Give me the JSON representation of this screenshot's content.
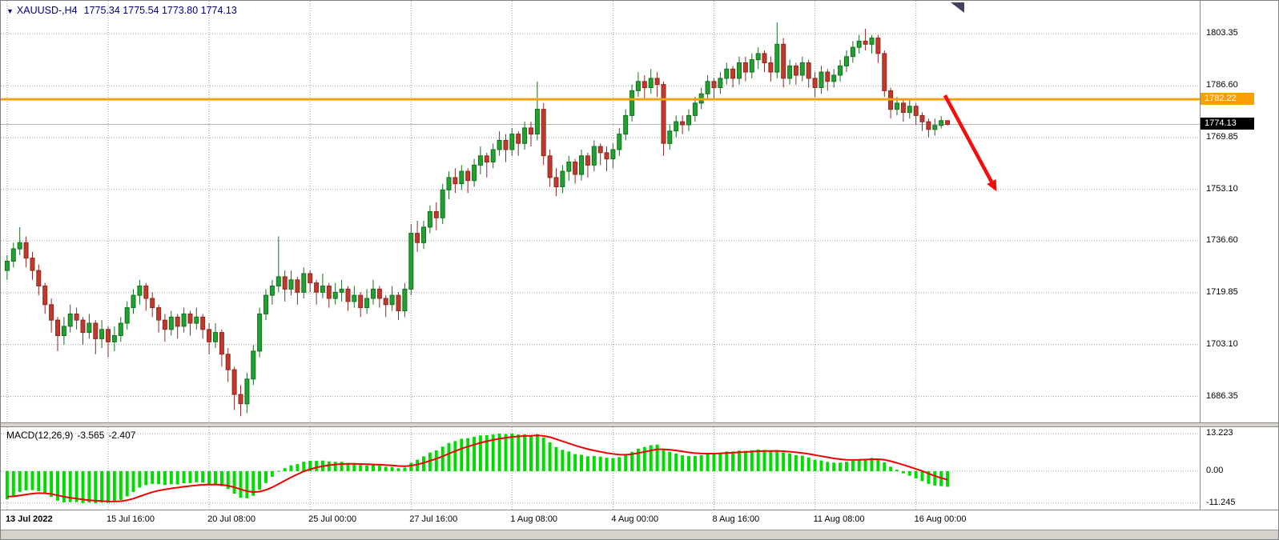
{
  "window": {
    "title_symbol": "XAUUSD-,H4",
    "title_ohlc": "1775.34 1775.54 1773.80 1774.13",
    "symbol_dropdown_icon": "▼"
  },
  "macd_panel": {
    "label": "MACD(12,26,9)",
    "value_main": "-3.565",
    "value_signal": "-2.407",
    "axis_labels": [
      "13.223",
      "0.00",
      "-11.245"
    ]
  },
  "price_axis": {
    "labels": [
      "1803.35",
      "1786.60",
      "1769.85",
      "1753.10",
      "1736.60",
      "1719.85",
      "1703.10",
      "1686.35"
    ],
    "hline_tag": "1782.22",
    "bid_tag": "1774.13"
  },
  "time_axis": [
    {
      "label": "13 Jul 2022",
      "bar": 0,
      "bold": true
    },
    {
      "label": "15 Jul 16:00",
      "bar": 16
    },
    {
      "label": "20 Jul 08:00",
      "bar": 32
    },
    {
      "label": "25 Jul 00:00",
      "bar": 48
    },
    {
      "label": "27 Jul 16:00",
      "bar": 64
    },
    {
      "label": "1 Aug 08:00",
      "bar": 80
    },
    {
      "label": "4 Aug 00:00",
      "bar": 96
    },
    {
      "label": "8 Aug 16:00",
      "bar": 112
    },
    {
      "label": "11 Aug 08:00",
      "bar": 128
    },
    {
      "label": "16 Aug 00:00",
      "bar": 144
    }
  ],
  "chart_data": {
    "type": "candlestick",
    "symbol": "XAUUSD-",
    "timeframe": "H4",
    "current_ohlc": {
      "open": 1775.34,
      "high": 1775.54,
      "low": 1773.8,
      "close": 1774.13
    },
    "price_range": [
      1678,
      1814
    ],
    "hline": 1782.22,
    "bid_price": 1774.13,
    "arrow": {
      "bar_from": 148.6,
      "price_from": 1783.5,
      "bar_to": 156.8,
      "price_to": 1752.5
    },
    "macd": {
      "fast": 12,
      "slow": 26,
      "signal": 9,
      "main_value": -3.565,
      "signal_value": -2.407,
      "scale_max": 13.223,
      "scale_min": -11.245
    },
    "colors": {
      "bull": "#1fa32e",
      "bull_border": "#156f1f",
      "bear": "#c0392b",
      "bear_border": "#8e2a21",
      "grid": "#9b9b9b",
      "hline": "#f7a000",
      "bid_line": "#b3b3b3",
      "macd_hist": "#00dc00",
      "macd_signal": "#f00000",
      "arrow": "#f50d0d",
      "title": "#000080"
    },
    "candles_ohlc": [
      [
        1727,
        1732,
        1724,
        1730
      ],
      [
        1730,
        1736,
        1728,
        1734
      ],
      [
        1734,
        1741,
        1732,
        1736
      ],
      [
        1736,
        1738,
        1728,
        1731
      ],
      [
        1731,
        1733,
        1724,
        1727
      ],
      [
        1727,
        1729,
        1719,
        1722
      ],
      [
        1722,
        1723,
        1713,
        1716
      ],
      [
        1716,
        1718,
        1707,
        1711
      ],
      [
        1711,
        1712,
        1701,
        1706
      ],
      [
        1706,
        1712,
        1703,
        1709
      ],
      [
        1709,
        1716,
        1707,
        1713
      ],
      [
        1713,
        1715,
        1708,
        1711
      ],
      [
        1711,
        1712,
        1703,
        1707
      ],
      [
        1707,
        1713,
        1705,
        1710
      ],
      [
        1710,
        1711,
        1700,
        1705
      ],
      [
        1705,
        1711,
        1702,
        1708
      ],
      [
        1708,
        1709,
        1699,
        1704
      ],
      [
        1704,
        1709,
        1701,
        1706
      ],
      [
        1706,
        1712,
        1704,
        1710
      ],
      [
        1710,
        1717,
        1708,
        1715
      ],
      [
        1715,
        1721,
        1713,
        1719
      ],
      [
        1719,
        1724,
        1716,
        1722
      ],
      [
        1722,
        1723,
        1714,
        1718
      ],
      [
        1718,
        1720,
        1712,
        1715
      ],
      [
        1715,
        1716,
        1707,
        1711
      ],
      [
        1711,
        1713,
        1704,
        1708
      ],
      [
        1708,
        1714,
        1706,
        1712
      ],
      [
        1712,
        1713,
        1705,
        1709
      ],
      [
        1709,
        1715,
        1707,
        1713
      ],
      [
        1713,
        1714,
        1706,
        1710
      ],
      [
        1710,
        1715,
        1708,
        1712
      ],
      [
        1712,
        1713,
        1705,
        1708
      ],
      [
        1708,
        1710,
        1700,
        1704
      ],
      [
        1704,
        1710,
        1702,
        1707
      ],
      [
        1707,
        1708,
        1696,
        1700
      ],
      [
        1700,
        1702,
        1691,
        1695
      ],
      [
        1695,
        1696,
        1682,
        1687
      ],
      [
        1687,
        1690,
        1680,
        1684
      ],
      [
        1684,
        1694,
        1681,
        1692
      ],
      [
        1692,
        1703,
        1690,
        1701
      ],
      [
        1701,
        1715,
        1699,
        1713
      ],
      [
        1713,
        1721,
        1711,
        1719
      ],
      [
        1719,
        1724,
        1716,
        1722
      ],
      [
        1722,
        1738,
        1720,
        1725
      ],
      [
        1725,
        1727,
        1717,
        1721
      ],
      [
        1721,
        1727,
        1719,
        1724
      ],
      [
        1724,
        1725,
        1716,
        1720
      ],
      [
        1720,
        1728,
        1718,
        1726
      ],
      [
        1726,
        1727,
        1720,
        1723
      ],
      [
        1723,
        1724,
        1716,
        1720
      ],
      [
        1720,
        1726,
        1718,
        1722
      ],
      [
        1722,
        1723,
        1715,
        1718
      ],
      [
        1718,
        1723,
        1716,
        1720
      ],
      [
        1720,
        1724,
        1717,
        1721
      ],
      [
        1721,
        1722,
        1714,
        1717
      ],
      [
        1717,
        1722,
        1715,
        1719
      ],
      [
        1719,
        1720,
        1712,
        1715
      ],
      [
        1715,
        1721,
        1713,
        1718
      ],
      [
        1718,
        1724,
        1716,
        1721
      ],
      [
        1721,
        1722,
        1715,
        1718
      ],
      [
        1718,
        1719,
        1712,
        1716
      ],
      [
        1716,
        1722,
        1714,
        1719
      ],
      [
        1719,
        1720,
        1711,
        1714
      ],
      [
        1714,
        1723,
        1712,
        1721
      ],
      [
        1721,
        1742,
        1719,
        1739
      ],
      [
        1739,
        1743,
        1733,
        1736
      ],
      [
        1736,
        1743,
        1734,
        1741
      ],
      [
        1741,
        1748,
        1739,
        1746
      ],
      [
        1746,
        1749,
        1740,
        1744
      ],
      [
        1744,
        1755,
        1742,
        1753
      ],
      [
        1753,
        1759,
        1750,
        1757
      ],
      [
        1757,
        1760,
        1752,
        1755
      ],
      [
        1755,
        1761,
        1753,
        1759
      ],
      [
        1759,
        1760,
        1752,
        1756
      ],
      [
        1756,
        1763,
        1754,
        1761
      ],
      [
        1761,
        1767,
        1758,
        1764
      ],
      [
        1764,
        1765,
        1757,
        1762
      ],
      [
        1762,
        1768,
        1760,
        1766
      ],
      [
        1766,
        1772,
        1764,
        1769
      ],
      [
        1769,
        1771,
        1762,
        1766
      ],
      [
        1766,
        1773,
        1764,
        1771
      ],
      [
        1771,
        1772,
        1764,
        1768
      ],
      [
        1768,
        1775,
        1766,
        1773
      ],
      [
        1773,
        1775,
        1767,
        1771
      ],
      [
        1771,
        1788,
        1769,
        1779
      ],
      [
        1779,
        1781,
        1761,
        1764
      ],
      [
        1764,
        1766,
        1754,
        1757
      ],
      [
        1757,
        1760,
        1751,
        1754
      ],
      [
        1754,
        1761,
        1752,
        1759
      ],
      [
        1759,
        1764,
        1756,
        1762
      ],
      [
        1762,
        1763,
        1755,
        1758
      ],
      [
        1758,
        1766,
        1756,
        1764
      ],
      [
        1764,
        1765,
        1757,
        1761
      ],
      [
        1761,
        1769,
        1759,
        1767
      ],
      [
        1767,
        1768,
        1761,
        1765
      ],
      [
        1765,
        1767,
        1759,
        1763
      ],
      [
        1763,
        1768,
        1760,
        1766
      ],
      [
        1766,
        1773,
        1764,
        1771
      ],
      [
        1771,
        1779,
        1769,
        1777
      ],
      [
        1777,
        1787,
        1775,
        1785
      ],
      [
        1785,
        1791,
        1783,
        1788
      ],
      [
        1788,
        1790,
        1782,
        1786
      ],
      [
        1786,
        1792,
        1784,
        1789
      ],
      [
        1789,
        1791,
        1783,
        1787
      ],
      [
        1787,
        1788,
        1764,
        1768
      ],
      [
        1768,
        1774,
        1766,
        1772
      ],
      [
        1772,
        1777,
        1770,
        1775
      ],
      [
        1775,
        1777,
        1771,
        1774
      ],
      [
        1774,
        1779,
        1772,
        1777
      ],
      [
        1777,
        1783,
        1775,
        1781
      ],
      [
        1781,
        1786,
        1779,
        1784
      ],
      [
        1784,
        1790,
        1782,
        1788
      ],
      [
        1788,
        1789,
        1782,
        1786
      ],
      [
        1786,
        1791,
        1784,
        1789
      ],
      [
        1789,
        1794,
        1787,
        1792
      ],
      [
        1792,
        1793,
        1786,
        1789
      ],
      [
        1789,
        1796,
        1787,
        1794
      ],
      [
        1794,
        1796,
        1788,
        1791
      ],
      [
        1791,
        1797,
        1789,
        1795
      ],
      [
        1795,
        1799,
        1792,
        1797
      ],
      [
        1797,
        1798,
        1791,
        1794
      ],
      [
        1794,
        1796,
        1788,
        1791
      ],
      [
        1791,
        1807,
        1789,
        1800
      ],
      [
        1800,
        1802,
        1786,
        1789
      ],
      [
        1789,
        1795,
        1787,
        1793
      ],
      [
        1793,
        1794,
        1787,
        1790
      ],
      [
        1790,
        1796,
        1788,
        1794
      ],
      [
        1794,
        1795,
        1786,
        1789
      ],
      [
        1789,
        1791,
        1783,
        1786
      ],
      [
        1786,
        1793,
        1784,
        1791
      ],
      [
        1791,
        1792,
        1785,
        1788
      ],
      [
        1788,
        1792,
        1786,
        1790
      ],
      [
        1790,
        1795,
        1788,
        1793
      ],
      [
        1793,
        1798,
        1791,
        1796
      ],
      [
        1796,
        1801,
        1794,
        1799
      ],
      [
        1799,
        1803,
        1797,
        1801
      ],
      [
        1801,
        1805,
        1798,
        1800
      ],
      [
        1800,
        1803,
        1797,
        1802
      ],
      [
        1802,
        1803,
        1794,
        1797
      ],
      [
        1797,
        1798,
        1783,
        1785
      ],
      [
        1785,
        1786,
        1776,
        1779
      ],
      [
        1779,
        1783,
        1777,
        1781
      ],
      [
        1781,
        1782,
        1775,
        1778
      ],
      [
        1778,
        1782,
        1776,
        1780
      ],
      [
        1780,
        1781,
        1774,
        1777
      ],
      [
        1777,
        1778,
        1772,
        1775
      ],
      [
        1775,
        1776,
        1770,
        1772.5
      ],
      [
        1772.5,
        1776,
        1770.5,
        1773.8
      ],
      [
        1773.8,
        1776.8,
        1772.8,
        1775.34
      ],
      [
        1775.34,
        1775.54,
        1773.8,
        1774.13
      ]
    ]
  }
}
